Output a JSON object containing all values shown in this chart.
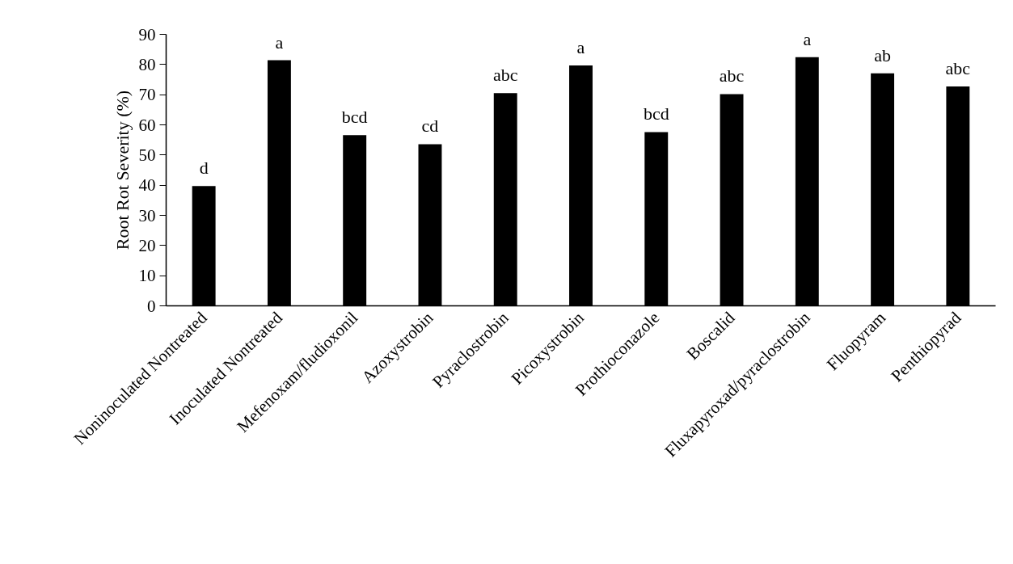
{
  "chart_data": {
    "type": "bar",
    "ylabel": "Root Rot Severity (%)",
    "categories": [
      "Noninoculated Nontreated",
      "Inoculated Nontreated",
      "Mefenoxam/fludioxonil",
      "Azoxystrobin",
      "Pyraclostrobin",
      "Picoxystrobin",
      "Prothioconazole",
      "Boscalid",
      "Fluxapyroxad/pyraclostrobin",
      "Fluopyram",
      "Penthiopyrad"
    ],
    "values": [
      39.7,
      81.4,
      56.6,
      53.6,
      70.5,
      79.7,
      57.6,
      70.2,
      82.4,
      77.1,
      72.7
    ],
    "color": "#000000",
    "ylim": [
      0,
      90
    ],
    "yticks": [
      0,
      10,
      20,
      30,
      40,
      50,
      60,
      70,
      80,
      90
    ],
    "grid": false,
    "legend": false,
    "annotations": [
      {
        "text": "d",
        "x": "Noninoculated Nontreated",
        "y": 39.7
      },
      {
        "text": "a",
        "x": "Inoculated Nontreated",
        "y": 81.4
      },
      {
        "text": "bcd",
        "x": "Mefenoxam/fludioxonil",
        "y": 56.6
      },
      {
        "text": "cd",
        "x": "Azoxystrobin",
        "y": 53.6
      },
      {
        "text": "abc",
        "x": "Pyraclostrobin",
        "y": 70.5
      },
      {
        "text": "a",
        "x": "Picoxystrobin",
        "y": 79.7
      },
      {
        "text": "bcd",
        "x": "Prothioconazole",
        "y": 57.6
      },
      {
        "text": "abc",
        "x": "Boscalid",
        "y": 70.2
      },
      {
        "text": "a",
        "x": "Fluxapyroxad/pyraclostrobin",
        "y": 82.4
      },
      {
        "text": "ab",
        "x": "Fluopyram",
        "y": 77.1
      },
      {
        "text": "abc",
        "x": "Penthiopyrad",
        "y": 72.7
      }
    ]
  }
}
